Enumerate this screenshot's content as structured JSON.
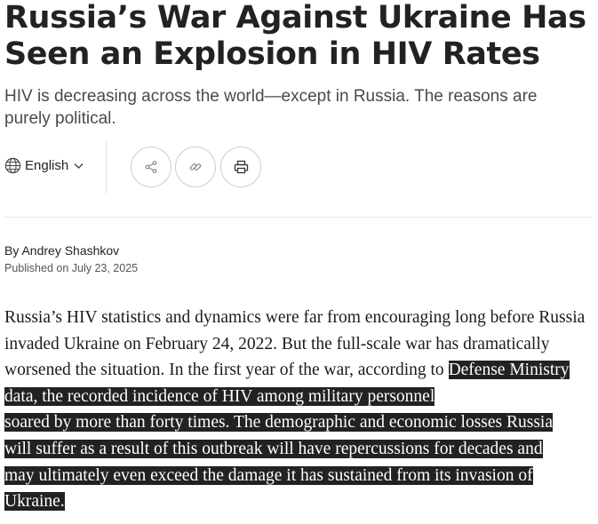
{
  "article": {
    "title": "Russia’s War Against Ukraine Has Seen an Explosion in HIV Rates",
    "subtitle": "HIV is decreasing across the world—except in Russia. The reasons are purely political.",
    "language": "English",
    "author": "By Andrey Shashkov",
    "published": "Published on July 23, 2025",
    "body_plain": "Russia’s HIV statistics and dynamics were far from encouraging long before Russia invaded Ukraine on February 24, 2022. But the full-scale war has dramatically worsened the situation. In the first year of the war, according to ",
    "body_selected_lines": [
      "Defense Ministry data, the recorded incidence of HIV among military personnel",
      "soared by more than forty times. The demographic and economic losses Russia",
      "will suffer as a result of this outbreak will have repercussions for decades and",
      "may ultimately even exceed the damage it has sustained from its invasion of",
      "Ukraine."
    ]
  },
  "icons": {
    "language": "globe-icon",
    "language_toggle": "chevron-down-icon",
    "share": "share-icon",
    "copy_link": "link-icon",
    "print": "print-icon"
  }
}
